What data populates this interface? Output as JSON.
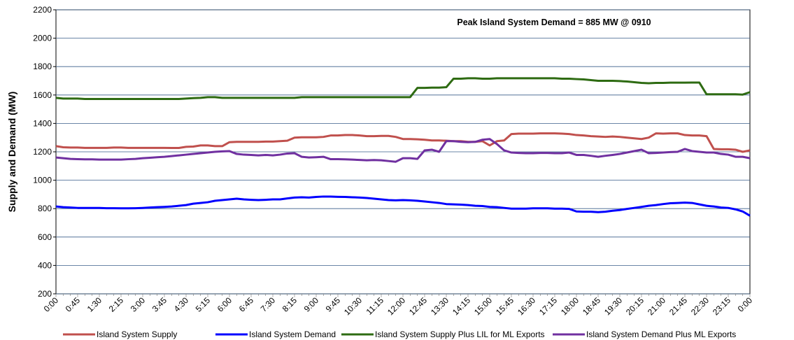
{
  "chart_data": {
    "type": "line",
    "annotation": "Peak Island System Demand = 885 MW @ 0910",
    "y_label": "Supply and Demand (MW)",
    "ylim": [
      200,
      2200
    ],
    "yticks": [
      200,
      400,
      600,
      800,
      1000,
      1200,
      1400,
      1600,
      1800,
      2000,
      2200
    ],
    "grid": true,
    "legend": "bottom",
    "categories": [
      "0:00",
      null,
      null,
      "0:45",
      null,
      null,
      "1:30",
      null,
      null,
      "2:15",
      null,
      null,
      "3:00",
      null,
      null,
      "3:45",
      null,
      null,
      "4:30",
      null,
      null,
      "5:15",
      null,
      null,
      "6:00",
      null,
      null,
      "6:45",
      null,
      null,
      "7:30",
      null,
      null,
      "8:15",
      null,
      null,
      "9:00",
      null,
      null,
      "9:45",
      null,
      null,
      "10:30",
      null,
      null,
      "11:15",
      null,
      null,
      "12:00",
      null,
      null,
      "12:45",
      null,
      null,
      "13:30",
      null,
      null,
      "14:15",
      null,
      null,
      "15:00",
      null,
      null,
      "15:45",
      null,
      null,
      "16:30",
      null,
      null,
      "17:15",
      null,
      null,
      "18:00",
      null,
      null,
      "18:45",
      null,
      null,
      "19:30",
      null,
      null,
      "20:15",
      null,
      null,
      "21:00",
      null,
      null,
      "21:45",
      null,
      null,
      "22:30",
      null,
      null,
      "23:15",
      null,
      null,
      "0:00"
    ],
    "series": [
      {
        "name": "Island System Supply",
        "color": "#c0504d",
        "values": [
          1240,
          1232,
          1230,
          1230,
          1228,
          1228,
          1228,
          1228,
          1230,
          1230,
          1228,
          1228,
          1228,
          1228,
          1228,
          1228,
          1227,
          1227,
          1235,
          1237,
          1245,
          1245,
          1240,
          1240,
          1268,
          1270,
          1270,
          1270,
          1270,
          1272,
          1272,
          1275,
          1278,
          1300,
          1302,
          1302,
          1302,
          1305,
          1315,
          1315,
          1318,
          1318,
          1315,
          1310,
          1310,
          1312,
          1312,
          1305,
          1290,
          1290,
          1288,
          1285,
          1280,
          1280,
          1278,
          1275,
          1275,
          1270,
          1270,
          1275,
          1245,
          1275,
          1280,
          1325,
          1328,
          1328,
          1328,
          1330,
          1330,
          1330,
          1328,
          1325,
          1318,
          1315,
          1310,
          1308,
          1305,
          1308,
          1305,
          1300,
          1295,
          1290,
          1300,
          1330,
          1328,
          1330,
          1330,
          1318,
          1315,
          1315,
          1310,
          1220,
          1218,
          1218,
          1215,
          1200,
          1210
        ]
      },
      {
        "name": "Island System Demand",
        "color": "#0000ff",
        "values": [
          815,
          810,
          808,
          805,
          805,
          805,
          805,
          803,
          803,
          802,
          802,
          803,
          805,
          808,
          810,
          812,
          815,
          820,
          825,
          835,
          840,
          845,
          855,
          860,
          865,
          870,
          865,
          862,
          860,
          862,
          865,
          865,
          872,
          878,
          880,
          878,
          882,
          885,
          885,
          883,
          882,
          880,
          878,
          875,
          870,
          865,
          860,
          858,
          860,
          858,
          855,
          850,
          845,
          840,
          832,
          830,
          828,
          825,
          820,
          818,
          812,
          810,
          805,
          800,
          800,
          800,
          802,
          802,
          802,
          800,
          800,
          798,
          780,
          778,
          778,
          775,
          778,
          785,
          790,
          798,
          805,
          812,
          820,
          825,
          832,
          838,
          840,
          842,
          840,
          830,
          820,
          815,
          808,
          805,
          795,
          780,
          750
        ]
      },
      {
        "name": "Island System Supply Plus LIL for ML Exports",
        "color": "#2e6b12",
        "values": [
          1580,
          1575,
          1575,
          1575,
          1572,
          1572,
          1572,
          1572,
          1572,
          1572,
          1572,
          1572,
          1572,
          1572,
          1572,
          1572,
          1572,
          1572,
          1575,
          1578,
          1580,
          1585,
          1585,
          1580,
          1580,
          1580,
          1580,
          1580,
          1580,
          1580,
          1580,
          1580,
          1580,
          1580,
          1585,
          1585,
          1585,
          1585,
          1585,
          1585,
          1585,
          1585,
          1585,
          1585,
          1585,
          1585,
          1585,
          1585,
          1585,
          1585,
          1650,
          1650,
          1652,
          1652,
          1655,
          1715,
          1715,
          1718,
          1718,
          1715,
          1715,
          1718,
          1718,
          1718,
          1718,
          1718,
          1718,
          1718,
          1718,
          1718,
          1715,
          1715,
          1712,
          1710,
          1705,
          1700,
          1700,
          1700,
          1698,
          1695,
          1690,
          1685,
          1683,
          1685,
          1685,
          1687,
          1687,
          1687,
          1688,
          1688,
          1605,
          1605,
          1605,
          1605,
          1605,
          1603,
          1620
        ]
      },
      {
        "name": "Island System Demand Plus ML Exports",
        "color": "#7030a0",
        "values": [
          1160,
          1155,
          1150,
          1148,
          1147,
          1147,
          1145,
          1145,
          1145,
          1145,
          1148,
          1150,
          1155,
          1158,
          1162,
          1165,
          1170,
          1175,
          1180,
          1185,
          1190,
          1195,
          1200,
          1203,
          1205,
          1185,
          1180,
          1178,
          1175,
          1178,
          1175,
          1180,
          1188,
          1190,
          1165,
          1160,
          1162,
          1165,
          1148,
          1148,
          1147,
          1145,
          1143,
          1140,
          1142,
          1140,
          1135,
          1130,
          1155,
          1155,
          1150,
          1210,
          1215,
          1200,
          1275,
          1275,
          1270,
          1268,
          1270,
          1285,
          1290,
          1255,
          1210,
          1195,
          1192,
          1190,
          1190,
          1192,
          1192,
          1190,
          1190,
          1195,
          1178,
          1178,
          1172,
          1165,
          1172,
          1178,
          1185,
          1195,
          1205,
          1215,
          1190,
          1192,
          1195,
          1198,
          1200,
          1220,
          1205,
          1200,
          1195,
          1195,
          1185,
          1180,
          1165,
          1165,
          1155
        ]
      }
    ]
  }
}
